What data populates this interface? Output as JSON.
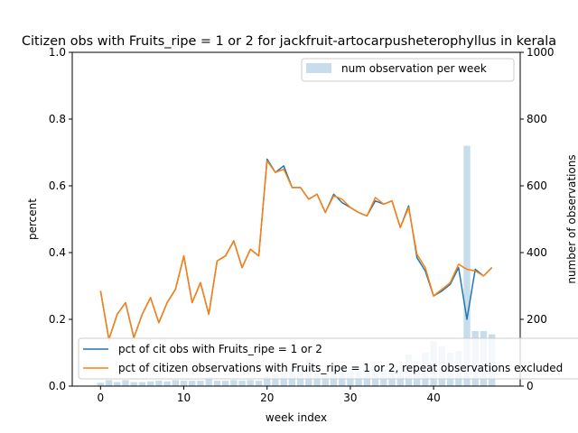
{
  "chart_data": {
    "type": "line",
    "title": "Citizen obs with Fruits_ripe = 1 or 2 for jackfruit-artocarpusheterophyllus in kerala",
    "xlabel": "week index",
    "ylabel": "percent",
    "y2label": "number of observations",
    "xlim": [
      -3.4,
      50.4
    ],
    "ylim": [
      0,
      1.0
    ],
    "y2lim": [
      0,
      1000
    ],
    "xticks": [
      0,
      10,
      20,
      30,
      40
    ],
    "yticks": [
      0.0,
      0.2,
      0.4,
      0.6,
      0.8,
      1.0
    ],
    "y2ticks": [
      0,
      200,
      400,
      600,
      800,
      1000
    ],
    "x": [
      0,
      1,
      2,
      3,
      4,
      5,
      6,
      7,
      8,
      9,
      10,
      11,
      12,
      13,
      14,
      15,
      16,
      17,
      18,
      19,
      20,
      21,
      22,
      23,
      24,
      25,
      26,
      27,
      28,
      29,
      30,
      31,
      32,
      33,
      34,
      35,
      36,
      37,
      38,
      39,
      40,
      41,
      42,
      43,
      44,
      45,
      46,
      47
    ],
    "series": [
      {
        "name": "pct of cit obs with Fruits_ripe = 1 or 2",
        "color": "#1f77b4",
        "values": [
          0.285,
          0.14,
          0.215,
          0.25,
          0.145,
          0.215,
          0.265,
          0.19,
          0.25,
          0.29,
          0.39,
          0.25,
          0.31,
          0.215,
          0.375,
          0.39,
          0.435,
          0.355,
          0.41,
          0.39,
          0.68,
          0.64,
          0.66,
          0.595,
          0.595,
          0.56,
          0.575,
          0.52,
          0.575,
          0.55,
          0.535,
          0.52,
          0.51,
          0.555,
          0.545,
          0.555,
          0.475,
          0.54,
          0.385,
          0.345,
          0.27,
          0.285,
          0.305,
          0.355,
          0.2,
          0.35,
          0.33,
          0.355
        ]
      },
      {
        "name": "pct of citizen observations with Fruits_ripe = 1 or 2, repeat observations excluded",
        "color": "#ff7f0e",
        "values": [
          0.285,
          0.14,
          0.215,
          0.25,
          0.145,
          0.215,
          0.265,
          0.19,
          0.25,
          0.29,
          0.39,
          0.25,
          0.31,
          0.215,
          0.375,
          0.39,
          0.435,
          0.355,
          0.41,
          0.39,
          0.675,
          0.64,
          0.65,
          0.595,
          0.595,
          0.56,
          0.575,
          0.52,
          0.57,
          0.56,
          0.535,
          0.52,
          0.51,
          0.565,
          0.545,
          0.555,
          0.475,
          0.535,
          0.395,
          0.355,
          0.27,
          0.29,
          0.31,
          0.365,
          0.35,
          0.345,
          0.33,
          0.355
        ]
      }
    ],
    "bars": {
      "name": "num observation per week",
      "color": "#1f77b4",
      "alpha": 0.25,
      "values": [
        10,
        18,
        12,
        18,
        12,
        12,
        14,
        16,
        14,
        18,
        16,
        16,
        16,
        26,
        16,
        16,
        18,
        16,
        18,
        16,
        30,
        35,
        42,
        40,
        50,
        80,
        40,
        40,
        45,
        45,
        40,
        45,
        45,
        50,
        50,
        60,
        60,
        95,
        75,
        100,
        135,
        120,
        100,
        105,
        720,
        165,
        165,
        155
      ]
    },
    "legend_upper_right": "top-right",
    "legend_lower": "bottom-left"
  }
}
